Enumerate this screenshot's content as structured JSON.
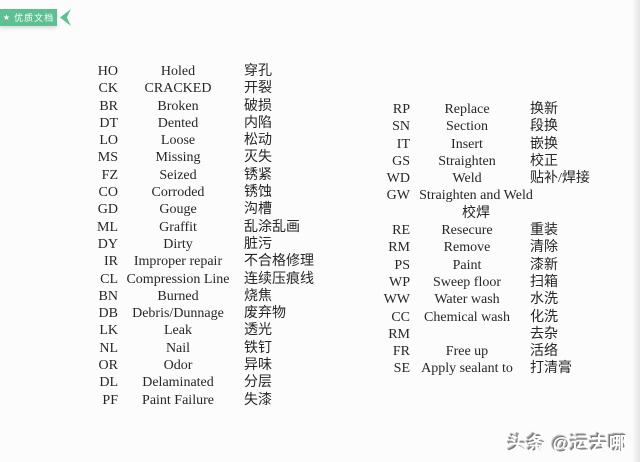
{
  "badge": {
    "star": "★",
    "label": "优质文档",
    "color": "#5ebf92"
  },
  "tables": {
    "left": {
      "rows": [
        {
          "code": "HO",
          "english": "Holed",
          "chinese": "穿孔"
        },
        {
          "code": "CK",
          "english": "CRACKED",
          "chinese": "开裂"
        },
        {
          "code": "BR",
          "english": "Broken",
          "chinese": "破损"
        },
        {
          "code": "DT",
          "english": "Dented",
          "chinese": "内陷"
        },
        {
          "code": "LO",
          "english": "Loose",
          "chinese": "松动"
        },
        {
          "code": "MS",
          "english": "Missing",
          "chinese": "灭失"
        },
        {
          "code": "FZ",
          "english": "Seized",
          "chinese": "锈紧"
        },
        {
          "code": "CO",
          "english": "Corroded",
          "chinese": "锈蚀"
        },
        {
          "code": "GD",
          "english": "Gouge",
          "chinese": "沟槽"
        },
        {
          "code": "ML",
          "english": "Graffit",
          "chinese": "乱涂乱画"
        },
        {
          "code": "DY",
          "english": "Dirty",
          "chinese": "脏污"
        },
        {
          "code": "IR",
          "english": "Improper repair",
          "chinese": "不合格修理"
        },
        {
          "code": "CL",
          "english": "Compression Line",
          "chinese": "连续压痕线"
        },
        {
          "code": "BN",
          "english": "Burned",
          "chinese": "烧焦"
        },
        {
          "code": "DB",
          "english": "Debris/Dunnage",
          "chinese": "废弃物"
        },
        {
          "code": "LK",
          "english": "Leak",
          "chinese": "透光"
        },
        {
          "code": "NL",
          "english": "Nail",
          "chinese": "铁钉"
        },
        {
          "code": "OR",
          "english": "Odor",
          "chinese": "异味"
        },
        {
          "code": "DL",
          "english": "Delaminated",
          "chinese": "分层"
        },
        {
          "code": "PF",
          "english": "Paint Failure",
          "chinese": "失漆"
        }
      ]
    },
    "right": {
      "rows": [
        {
          "code": "RP",
          "english": "Replace",
          "chinese": "换新"
        },
        {
          "code": "SN",
          "english": "Section",
          "chinese": "段换"
        },
        {
          "code": "IT",
          "english": "Insert",
          "chinese": "嵌换"
        },
        {
          "code": "GS",
          "english": "Straighten",
          "chinese": "校正"
        },
        {
          "code": "WD",
          "english": "Weld",
          "chinese": "贴补/焊接"
        },
        {
          "code": "GW",
          "english": "Straighten and Weld",
          "chinese": "校焊",
          "merged": true
        },
        {
          "code": "RE",
          "english": "Resecure",
          "chinese": "重装"
        },
        {
          "code": "RM",
          "english": "Remove",
          "chinese": "清除"
        },
        {
          "code": "PS",
          "english": "Paint",
          "chinese": "漆新"
        },
        {
          "code": "WP",
          "english": "Sweep floor",
          "chinese": "扫箱"
        },
        {
          "code": "WW",
          "english": "Water wash",
          "chinese": "水洗"
        },
        {
          "code": "CC",
          "english": "Chemical wash",
          "chinese": "化洗"
        },
        {
          "code": "RM",
          "english": "",
          "chinese": "去杂"
        },
        {
          "code": "FR",
          "english": "Free up",
          "chinese": "活络"
        },
        {
          "code": "SE",
          "english": "Apply sealant to",
          "chinese": "打清膏"
        }
      ]
    }
  },
  "watermark": {
    "text": "头条 @运去哪"
  }
}
